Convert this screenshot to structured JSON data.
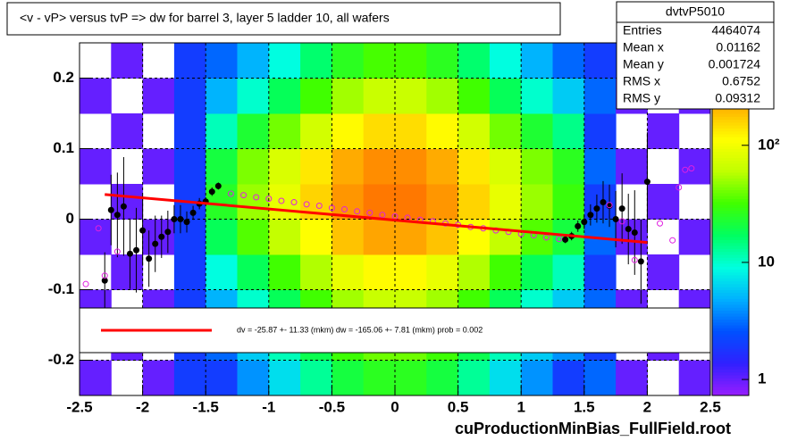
{
  "chart_data": {
    "type": "hist2d",
    "title": "<v - vP>       versus  tvP =>  dw for barrel 3, layer 5 ladder 10, all wafers",
    "footer": "cuProductionMinBias_FullField.root",
    "stats": {
      "name": "dvtvP5010",
      "rows": [
        [
          "Entries",
          "4464074"
        ],
        [
          "Mean x",
          "0.01162"
        ],
        [
          "Mean y",
          "0.001724"
        ],
        [
          "RMS x",
          "0.6752"
        ],
        [
          "RMS y",
          "0.09312"
        ]
      ]
    },
    "fit_label": "dv =  -25.87 +- 11.33 (mkm) dw = -165.06 +-  7.81 (mkm) prob = 0.002",
    "xlim": [
      -2.5,
      2.5
    ],
    "xticks": [
      -2.5,
      -2,
      -1.5,
      -1,
      -0.5,
      0,
      0.5,
      1,
      1.5,
      2,
      2.5
    ],
    "ylim": [
      -0.25,
      0.25
    ],
    "yticks": [
      -0.2,
      -0.1,
      0,
      0.1,
      0.2
    ],
    "zlim": [
      0.73,
      750
    ],
    "zticks": [
      1,
      10,
      {
        "value": 100,
        "label": "10²"
      }
    ],
    "zlog": true,
    "grid": true,
    "palette": [
      "#9a1eff",
      "#3020ff",
      "#0050ff",
      "#00b0ff",
      "#00ffe0",
      "#00ff60",
      "#40ff00",
      "#c0ff00",
      "#ffff00",
      "#ffb000",
      "#ff6000",
      "#ff0000"
    ],
    "heatmap": {
      "x_bins": [
        -2.5,
        -2.25,
        -2,
        -1.75,
        -1.5,
        -1.25,
        -1,
        -0.75,
        -0.5,
        -0.25,
        0,
        0.25,
        0.5,
        0.75,
        1,
        1.25,
        1.5,
        1.75,
        2,
        2.25,
        2.5
      ],
      "y_bins": [
        -0.25,
        -0.2,
        -0.15,
        -0.1,
        -0.05,
        0,
        0.05,
        0.1,
        0.15,
        0.2,
        0.25
      ],
      "counts": [
        [
          1,
          0,
          1,
          2,
          2,
          4,
          7,
          13,
          21,
          26,
          26,
          21,
          13,
          7,
          4,
          2,
          3,
          1,
          0,
          1
        ],
        [
          0,
          1,
          0,
          2,
          3,
          6,
          11,
          19,
          31,
          40,
          40,
          31,
          19,
          11,
          6,
          4,
          2,
          0,
          1,
          0
        ],
        [
          1,
          0,
          1,
          2,
          5,
          10,
          18,
          32,
          52,
          66,
          66,
          52,
          32,
          18,
          10,
          6,
          3,
          1,
          0,
          1
        ],
        [
          0,
          1,
          0,
          2,
          9,
          18,
          32,
          56,
          91,
          116,
          116,
          91,
          56,
          32,
          18,
          11,
          2,
          0,
          1,
          0
        ],
        [
          1,
          0,
          1,
          2,
          18,
          35,
          63,
          112,
          182,
          231,
          231,
          182,
          112,
          63,
          35,
          21,
          3,
          1,
          0,
          1
        ],
        [
          0,
          1,
          0,
          2,
          25,
          50,
          90,
          160,
          260,
          330,
          330,
          260,
          160,
          90,
          50,
          30,
          2,
          0,
          1,
          0
        ],
        [
          1,
          0,
          1,
          2,
          21,
          43,
          77,
          136,
          221,
          281,
          281,
          221,
          136,
          77,
          43,
          26,
          3,
          1,
          0,
          1
        ],
        [
          0,
          1,
          0,
          2,
          11,
          23,
          41,
          72,
          117,
          149,
          149,
          117,
          72,
          41,
          23,
          14,
          2,
          0,
          1,
          0
        ],
        [
          1,
          0,
          1,
          2,
          5,
          10,
          18,
          32,
          52,
          66,
          66,
          52,
          32,
          18,
          10,
          6,
          3,
          1,
          0,
          1
        ],
        [
          0,
          1,
          0,
          2,
          3,
          5,
          9,
          16,
          26,
          33,
          33,
          26,
          16,
          9,
          5,
          3,
          2,
          0,
          1,
          0
        ]
      ]
    },
    "series": [
      {
        "kind": "profile",
        "color": "#000000",
        "x": [
          -2.3,
          -2.25,
          -2.2,
          -2.15,
          -2.1,
          -2.05,
          -2,
          -1.95,
          -1.9,
          -1.85,
          -1.8,
          -1.75,
          -1.7,
          -1.65,
          -1.6,
          -1.55,
          -1.5,
          -1.45,
          -1.4,
          1.35,
          1.4,
          1.45,
          1.5,
          1.55,
          1.6,
          1.65,
          1.7,
          1.75,
          1.8,
          1.85,
          1.9,
          1.95,
          2
        ],
        "values": [
          -0.087,
          0.013,
          0.006,
          0.018,
          -0.049,
          -0.044,
          -0.016,
          -0.056,
          -0.035,
          -0.025,
          -0.018,
          0,
          0,
          -0.004,
          0.009,
          0.022,
          0.025,
          0.039,
          0.047,
          -0.029,
          -0.024,
          -0.01,
          -0.004,
          0.006,
          0.015,
          0.024,
          0.019,
          0,
          0.015,
          -0.014,
          -0.019,
          -0.06,
          0.053
        ],
        "errors": [
          0.04,
          0.05,
          0.06,
          0.07,
          0.05,
          0.06,
          0.05,
          0.04,
          0.04,
          0.03,
          0.03,
          0.02,
          0.02,
          0.015,
          0.01,
          0.008,
          0.006,
          0.006,
          0.005,
          0.005,
          0.006,
          0.008,
          0.01,
          0.015,
          0.02,
          0.03,
          0.03,
          0.04,
          0.05,
          0.05,
          0.06,
          0.06,
          0.07
        ]
      },
      {
        "kind": "markers",
        "color": "#e020e0",
        "x": [
          -2.45,
          -2.35,
          -2.3,
          -2.2,
          -1.3,
          -1.2,
          -1.1,
          -1,
          -0.9,
          -0.8,
          -0.7,
          -0.6,
          -0.5,
          -0.4,
          -0.3,
          -0.2,
          -0.1,
          0,
          0.1,
          0.2,
          0.3,
          0.4,
          0.5,
          0.6,
          0.7,
          0.8,
          0.9,
          1,
          1.1,
          1.2,
          1.3,
          1.7,
          1.8,
          1.9,
          2.1,
          2.2,
          2.25,
          2.3,
          2.35
        ],
        "values": [
          -0.092,
          -0.013,
          -0.08,
          -0.046,
          0.036,
          0.034,
          0.031,
          0.029,
          0.026,
          0.024,
          0.021,
          0.019,
          0.016,
          0.014,
          0.011,
          0.009,
          0.006,
          0.004,
          0.002,
          -0.001,
          -0.003,
          -0.006,
          -0.008,
          -0.011,
          -0.013,
          -0.016,
          -0.018,
          -0.021,
          -0.023,
          -0.026,
          -0.028,
          0.02,
          -0.003,
          -0.058,
          -0.006,
          -0.03,
          0.045,
          0.07,
          0.072
        ]
      },
      {
        "kind": "fit",
        "color": "#ff0000",
        "x": [
          -2.3,
          2
        ],
        "values": [
          0.035,
          -0.033
        ]
      }
    ]
  }
}
